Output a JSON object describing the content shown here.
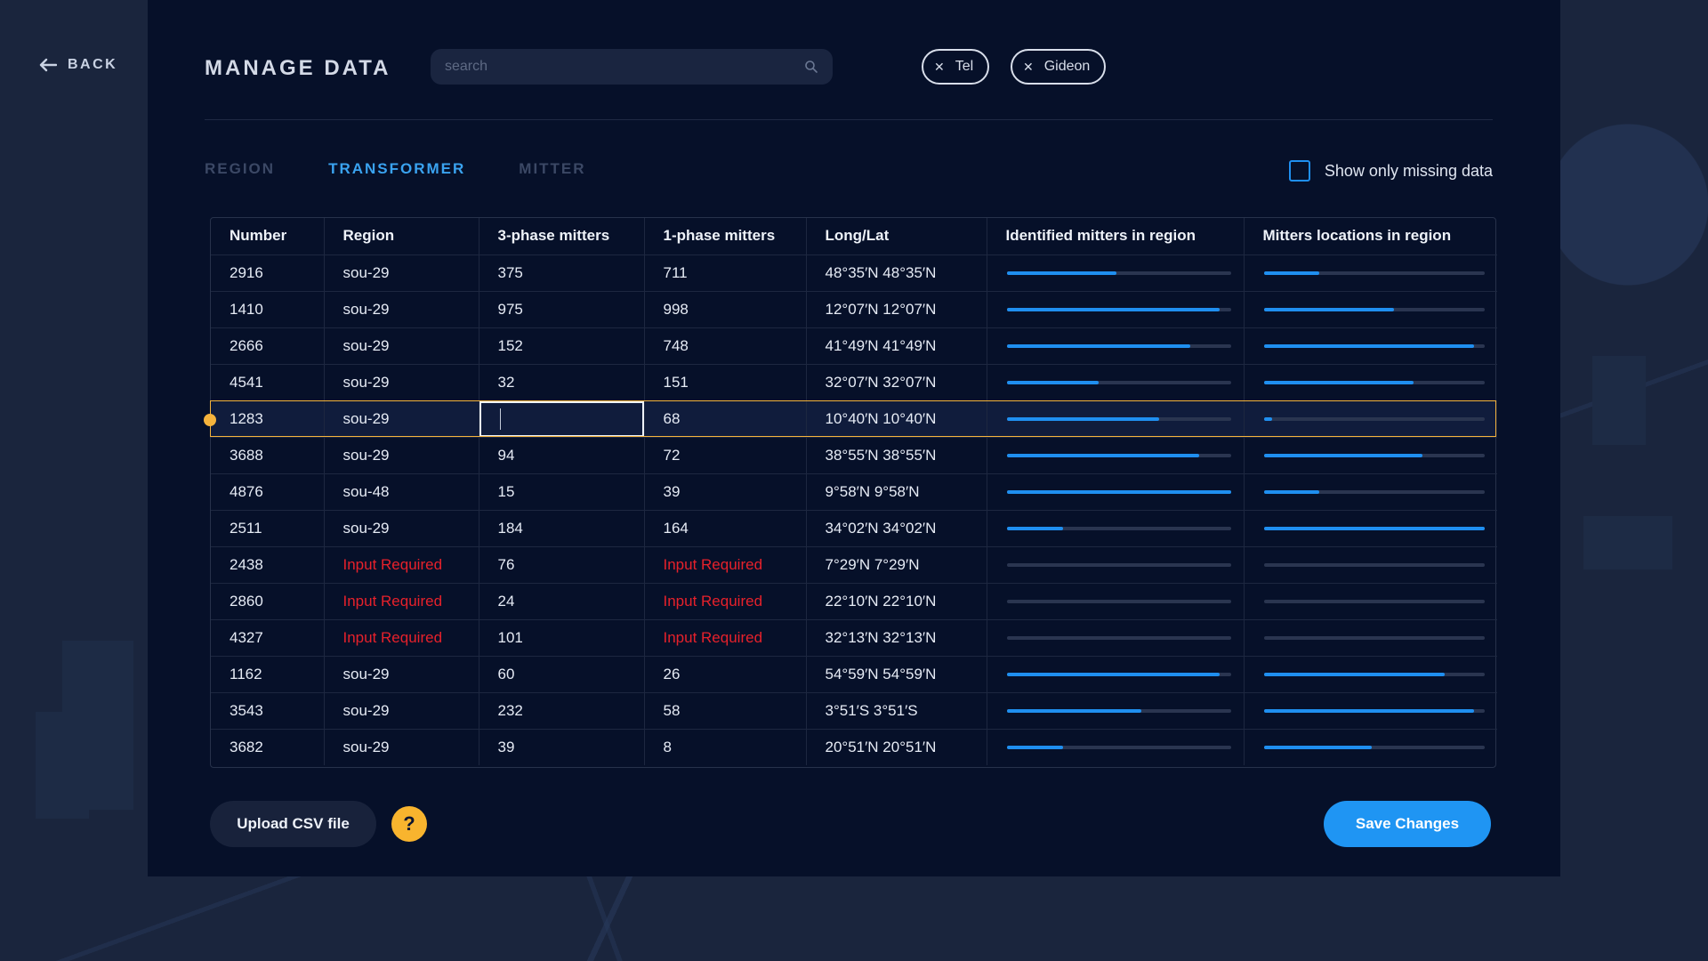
{
  "nav": {
    "back_label": "BACK"
  },
  "header": {
    "title": "MANAGE DATA",
    "search_placeholder": "search",
    "chips": [
      {
        "label": "Tel"
      },
      {
        "label": "Gideon"
      }
    ]
  },
  "tabs": [
    {
      "label": "REGION",
      "active": false
    },
    {
      "label": "TRANSFORMER",
      "active": true
    },
    {
      "label": "MITTER",
      "active": false
    }
  ],
  "filter": {
    "missing_label": "Show only missing data",
    "checked": false
  },
  "table": {
    "columns": [
      "Number",
      "Region",
      "3-phase mitters",
      "1-phase mitters",
      "Long/Lat",
      "Identified mitters in region",
      "Mitters locations in region"
    ],
    "rows": [
      {
        "number": "2916",
        "region": "sou-29",
        "three": "375",
        "one": "711",
        "longlat": "48°35′N 48°35′N",
        "identified": 0.49,
        "locations": 0.25
      },
      {
        "number": "1410",
        "region": "sou-29",
        "three": "975",
        "one": "998",
        "longlat": "12°07′N 12°07′N",
        "identified": 0.95,
        "locations": 0.59
      },
      {
        "number": "2666",
        "region": "sou-29",
        "three": "152",
        "one": "748",
        "longlat": "41°49′N 41°49′N",
        "identified": 0.82,
        "locations": 0.95
      },
      {
        "number": "4541",
        "region": "sou-29",
        "three": "32",
        "one": "151",
        "longlat": "32°07′N 32°07′N",
        "identified": 0.41,
        "locations": 0.68
      },
      {
        "number": "1283",
        "region": "sou-29",
        "three": "",
        "one": "68",
        "longlat": "10°40′N 10°40′N",
        "identified": 0.68,
        "locations": 0.04,
        "selected": true
      },
      {
        "number": "3688",
        "region": "sou-29",
        "three": "94",
        "one": "72",
        "longlat": "38°55′N 38°55′N",
        "identified": 0.86,
        "locations": 0.72
      },
      {
        "number": "4876",
        "region": "sou-48",
        "three": "15",
        "one": "39",
        "longlat": "9°58′N 9°58′N",
        "identified": 1.0,
        "locations": 0.25
      },
      {
        "number": "2511",
        "region": "sou-29",
        "three": "184",
        "one": "164",
        "longlat": "34°02′N 34°02′N",
        "identified": 0.25,
        "locations": 1.0
      },
      {
        "number": "2438",
        "region": "Input Required",
        "three": "76",
        "one": "Input Required",
        "longlat": "7°29′N 7°29′N",
        "identified": 0,
        "locations": 0
      },
      {
        "number": "2860",
        "region": "Input Required",
        "three": "24",
        "one": "Input Required",
        "longlat": "22°10′N 22°10′N",
        "identified": 0,
        "locations": 0
      },
      {
        "number": "4327",
        "region": "Input Required",
        "three": "101",
        "one": "Input Required",
        "longlat": "32°13′N 32°13′N",
        "identified": 0,
        "locations": 0
      },
      {
        "number": "1162",
        "region": "sou-29",
        "three": "60",
        "one": "26",
        "longlat": "54°59′N 54°59′N",
        "identified": 0.95,
        "locations": 0.82
      },
      {
        "number": "3543",
        "region": "sou-29",
        "three": "232",
        "one": "58",
        "longlat": "3°51′S 3°51′S",
        "identified": 0.6,
        "locations": 0.95
      },
      {
        "number": "3682",
        "region": "sou-29",
        "three": "39",
        "one": "8",
        "longlat": "20°51′N 20°51′N",
        "identified": 0.25,
        "locations": 0.49
      }
    ]
  },
  "actions": {
    "upload_label": "Upload CSV file",
    "help_label": "?",
    "save_label": "Save Changes"
  },
  "colors": {
    "accent": "#1f8ff0",
    "required": "#e7212b",
    "selection": "#f5b33c",
    "panel": "#061029"
  },
  "icons": {
    "back": "arrow-left-icon",
    "search": "search-icon",
    "chip_close": "close-icon"
  }
}
